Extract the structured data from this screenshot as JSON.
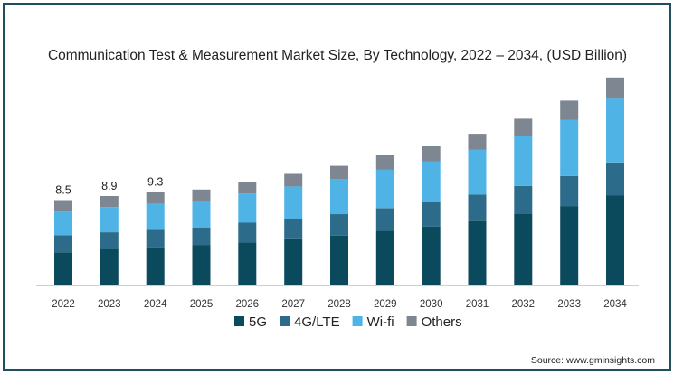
{
  "chart_data": {
    "type": "bar",
    "stacked": true,
    "title": "Communication Test & Measurement Market Size, By Technology, 2022 – 2034, (USD Billion)",
    "categories": [
      "2022",
      "2023",
      "2024",
      "2025",
      "2026",
      "2027",
      "2028",
      "2029",
      "2030",
      "2031",
      "2032",
      "2033",
      "2034"
    ],
    "series": [
      {
        "name": "5G",
        "color": "#0b4a5c",
        "values": [
          3.3,
          3.6,
          3.8,
          4.0,
          4.3,
          4.6,
          4.95,
          5.45,
          5.85,
          6.45,
          7.1,
          7.9,
          8.95
        ]
      },
      {
        "name": "4G/LTE",
        "color": "#2d6b8a",
        "values": [
          1.7,
          1.7,
          1.75,
          1.75,
          1.95,
          2.05,
          2.15,
          2.25,
          2.45,
          2.6,
          2.8,
          3.0,
          3.3
        ]
      },
      {
        "name": "Wi-fi",
        "color": "#4fb3e6",
        "values": [
          2.35,
          2.5,
          2.6,
          2.7,
          2.9,
          3.2,
          3.45,
          3.85,
          4.05,
          4.45,
          5.0,
          5.6,
          6.35
        ]
      },
      {
        "name": "Others",
        "color": "#7d8691",
        "values": [
          1.15,
          1.1,
          1.15,
          1.1,
          1.15,
          1.25,
          1.35,
          1.4,
          1.5,
          1.6,
          1.7,
          1.9,
          2.1
        ]
      }
    ],
    "data_labels": [
      "8.5",
      "8.9",
      "9.3",
      null,
      null,
      null,
      null,
      null,
      null,
      null,
      null,
      null,
      null
    ],
    "ylim": [
      0,
      20.5
    ],
    "xlabel": "",
    "ylabel": "",
    "grid": false,
    "legend_position": "bottom",
    "source": "Source: www.gminsights.com"
  }
}
